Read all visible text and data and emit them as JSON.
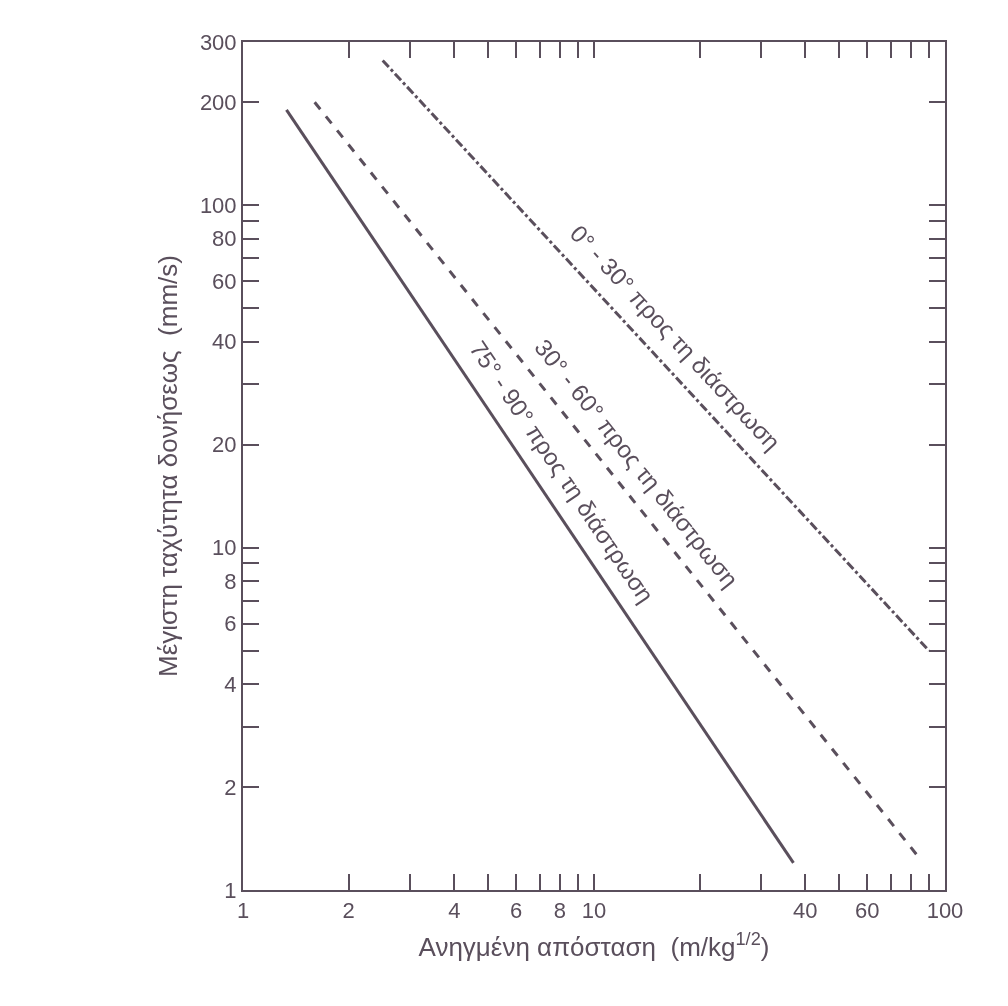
{
  "chart_data": {
    "type": "line",
    "xlabel": "Ανηγμένη απόσταση  (m/kg$^{1/2}$)",
    "ylabel": "Μέγιστη ταχύτητα δονήσεως  (mm/s)",
    "log": "xy",
    "xlim": [
      1,
      100
    ],
    "ylim": [
      1,
      300
    ],
    "xticks": [
      1,
      2,
      {
        "value": 3,
        "label": null
      },
      4,
      {
        "value": 5,
        "label": null
      },
      6,
      {
        "value": 7,
        "label": null
      },
      8,
      {
        "value": 9,
        "label": null
      },
      10,
      {
        "value": 20,
        "label": null
      },
      {
        "value": 30,
        "label": null
      },
      40,
      {
        "value": 50,
        "label": null
      },
      60,
      {
        "value": 70,
        "label": null
      },
      {
        "value": 80,
        "label": null
      },
      {
        "value": 90,
        "label": null
      },
      100
    ],
    "yticks": [
      1,
      2,
      {
        "value": 3,
        "label": null
      },
      4,
      {
        "value": 5,
        "label": null
      },
      6,
      {
        "value": 7,
        "label": null
      },
      8,
      {
        "value": 9,
        "label": null
      },
      10,
      20,
      {
        "value": 30,
        "label": null
      },
      40,
      {
        "value": 50,
        "label": null
      },
      60,
      {
        "value": 70,
        "label": null
      },
      80,
      {
        "value": 90,
        "label": null
      },
      100,
      200,
      300
    ],
    "series": [
      {
        "color": "#5a4f5c",
        "line_style": "solid",
        "x": [
          1.33,
          37
        ],
        "values": [
          190,
          1.2
        ]
      },
      {
        "color": "#5a4f5c",
        "line_style": "dashed",
        "x": [
          1.6,
          84
        ],
        "values": [
          200,
          1.25
        ]
      },
      {
        "color": "#5a4f5c",
        "line_style": "dashdot",
        "x": [
          2.5,
          90
        ],
        "values": [
          265,
          5.0
        ]
      }
    ],
    "annotations": [
      "75° - 90° προς τη διάστρωση",
      "30° - 60° προς τη διάστρωση",
      "0° - 30° προς τη διάστρωση"
    ]
  }
}
